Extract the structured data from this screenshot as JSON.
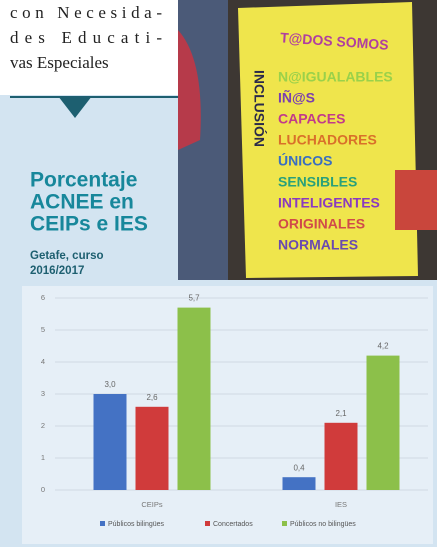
{
  "article_text": [
    "con Necesida-",
    "des Educati-",
    "vas Especiales"
  ],
  "photo": {
    "sign_lines": [
      "T@DOS SOMOS",
      "INCLUSIÓN",
      "N@IGUALABLES",
      "IÑ@S",
      "CAPACES",
      "LUCHADORES",
      "ÚNICOS",
      "SENSIBLES",
      "INTELIGENTES",
      "ORIGINALES",
      "NORMALES"
    ]
  },
  "sidebar": {
    "title_lines": [
      "Porcentaje",
      "ACNEE en",
      "CEIPs e IES"
    ],
    "subtitle_lines": [
      "Getafe, curso",
      "2016/2017"
    ]
  },
  "chart_data": {
    "type": "bar",
    "categories": [
      "CEIPs",
      "IES"
    ],
    "series": [
      {
        "name": "Públicos bilingües",
        "color": "#4472c4",
        "values": [
          3.0,
          0.4
        ],
        "value_labels": [
          "3,0",
          "0,4"
        ]
      },
      {
        "name": "Concertados",
        "color": "#d03b3b",
        "values": [
          2.6,
          2.1
        ],
        "value_labels": [
          "2,6",
          "2,1"
        ]
      },
      {
        "name": "Públicos no bilingües",
        "color": "#8cc04a",
        "values": [
          5.7,
          4.2
        ],
        "value_labels": [
          "5,7",
          "4,2"
        ]
      }
    ],
    "ylim": [
      0,
      6
    ],
    "yticks": [
      0,
      1,
      2,
      3,
      4,
      5,
      6
    ],
    "grid": true,
    "legend": "bottom"
  }
}
